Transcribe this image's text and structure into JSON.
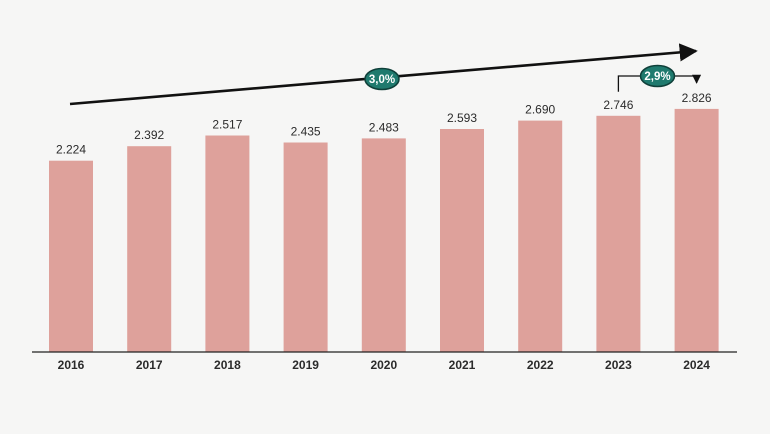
{
  "colors": {
    "bar": "#dea19b",
    "axis": "#222222",
    "badge_fill": "#1f7a6e",
    "badge_stroke": "#0f3f39",
    "arrow": "#111111"
  },
  "chart_data": {
    "type": "bar",
    "categories": [
      "2016",
      "2017",
      "2018",
      "2019",
      "2020",
      "2021",
      "2022",
      "2023",
      "2024"
    ],
    "values": [
      2224,
      2392,
      2517,
      2435,
      2483,
      2593,
      2690,
      2746,
      2826
    ],
    "value_labels": [
      "2.224",
      "2.392",
      "2.517",
      "2.435",
      "2.483",
      "2.593",
      "2.690",
      "2.746",
      "2.826"
    ],
    "title": "",
    "xlabel": "",
    "ylabel": "",
    "ylim": [
      0,
      3000
    ],
    "grid": false,
    "legend": "none",
    "annotations": [
      {
        "kind": "trend-arrow",
        "label": "3,0%",
        "from": "2016",
        "to": "2024"
      },
      {
        "kind": "bracket-arrow",
        "label": "2,9%",
        "from": "2023",
        "to": "2024"
      }
    ]
  }
}
